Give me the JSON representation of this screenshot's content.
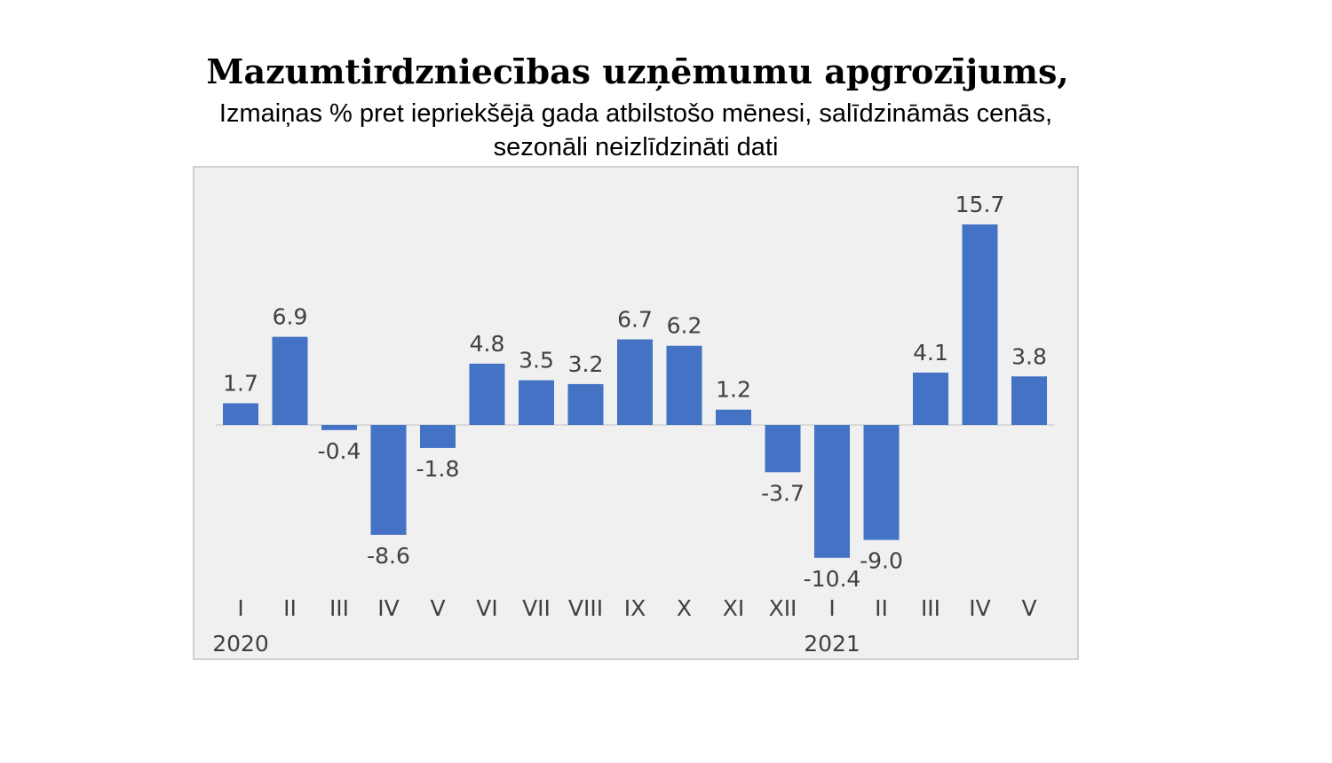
{
  "chart_data": {
    "type": "bar",
    "title": "Mazumtirdzniecības uzņēmumu apgrozījums,",
    "subtitle_line1": "Izmaiņas % pret iepriekšējā gada atbilstošo mēnesi, salīdzināmās cenās,",
    "subtitle_line2": "sezonāli neizlīdzināti dati",
    "categories": [
      "I",
      "II",
      "III",
      "IV",
      "V",
      "VI",
      "VII",
      "VIII",
      "IX",
      "X",
      "XI",
      "XII",
      "I",
      "II",
      "III",
      "IV",
      "V"
    ],
    "values": [
      1.7,
      6.9,
      -0.4,
      -8.6,
      -1.8,
      4.8,
      3.5,
      3.2,
      6.7,
      6.2,
      1.2,
      -3.7,
      -10.4,
      -9.0,
      4.1,
      15.7,
      3.8
    ],
    "value_labels": [
      "1.7",
      "6.9",
      "-0.4",
      "-8.6",
      "-1.8",
      "4.8",
      "3.5",
      "3.2",
      "6.7",
      "6.2",
      "1.2",
      "-3.7",
      "-10.4",
      "-9.0",
      "4.1",
      "15.7",
      "3.8"
    ],
    "year_labels": [
      {
        "text": "2020",
        "category_index": 0
      },
      {
        "text": "2021",
        "category_index": 12
      }
    ],
    "bar_color": "#4472C4",
    "xlabel": "",
    "ylabel": "",
    "grid": false,
    "legend": false
  }
}
